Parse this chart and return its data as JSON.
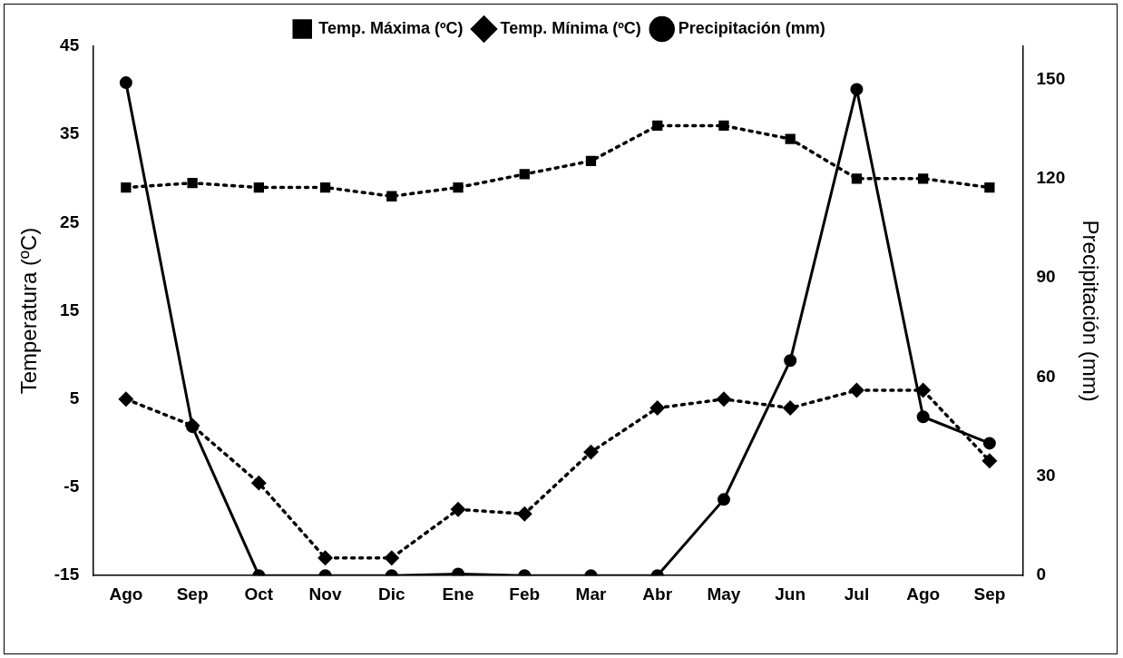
{
  "chart_data": {
    "type": "line",
    "categories": [
      "Ago",
      "Sep",
      "Oct",
      "Nov",
      "Dic",
      "Ene",
      "Feb",
      "Mar",
      "Abr",
      "May",
      "Jun",
      "Jul",
      "Ago",
      "Sep"
    ],
    "series": [
      {
        "name": "Temp. Máxima (ºC)",
        "color": "#000000",
        "marker": "square",
        "line_style": "dotted",
        "values": [
          29,
          29.5,
          29,
          29,
          28,
          29,
          30.5,
          32,
          36,
          36,
          34.5,
          30,
          30,
          29
        ]
      },
      {
        "name": "Temp. Mínima (ºC)",
        "color": "#000000",
        "marker": "diamond",
        "line_style": "dotted",
        "values": [
          5,
          2,
          -4.5,
          -13,
          -13,
          -7.5,
          -8,
          -1,
          4,
          5,
          4,
          6,
          6,
          -2
        ]
      },
      {
        "name": "Precipitación (mm)",
        "color": "#000000",
        "marker": "circle",
        "line_style": "solid",
        "axis": "y2",
        "values": [
          149,
          45,
          0,
          0,
          0,
          0.5,
          0,
          0,
          0,
          23,
          65,
          147,
          48,
          40
        ]
      }
    ],
    "ylabel": "Temperatura (ºC)",
    "y2label": "Precipitación (mm)",
    "ylim": [
      -15,
      45
    ],
    "yticks": [
      -15,
      -5,
      5,
      15,
      25,
      35,
      45
    ],
    "y2lim": [
      0,
      160
    ],
    "y2ticks": [
      0,
      30,
      60,
      90,
      120,
      150
    ],
    "legend": "top",
    "grid": false
  }
}
